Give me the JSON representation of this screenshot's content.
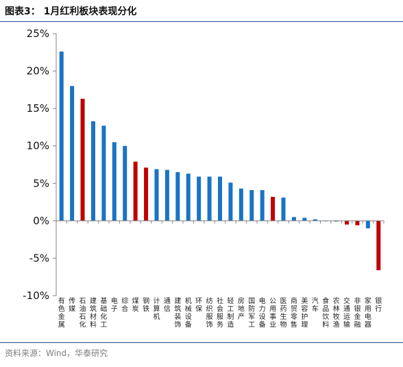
{
  "header": {
    "title": "图表3：  1月红利板块表现分化"
  },
  "footer": {
    "source": "资料来源：Wind，华泰研究"
  },
  "colors": {
    "default": "#1a73c4",
    "highlight": "#c00000",
    "axis": "#7f7f7f"
  },
  "chart_data": {
    "type": "bar",
    "title": "",
    "xlabel": "",
    "ylabel": "",
    "ylim": [
      -10,
      25
    ],
    "yticks": [
      25,
      20,
      15,
      10,
      5,
      0,
      -5,
      -10
    ],
    "ytick_labels": [
      "25%",
      "20%",
      "15%",
      "10%",
      "5%",
      "0%",
      "-5%",
      "-10%"
    ],
    "grid": false,
    "legend": "none",
    "categories": [
      "有色金属",
      "传媒",
      "石油石化",
      "建筑材料",
      "基础化工",
      "电子",
      "综合",
      "煤炭",
      "钢铁",
      "计算机",
      "通信",
      "建筑装饰",
      "机械设备",
      "环保",
      "纺织服饰",
      "社会服务",
      "轻工制造",
      "房地产",
      "国防军工",
      "电力设备",
      "公用事业",
      "医药生物",
      "商贸零售",
      "美容护理",
      "汽车",
      "食品饮料",
      "农林牧渔",
      "交通运输",
      "非银金融",
      "家用电器",
      "银行"
    ],
    "values": [
      22.6,
      18.0,
      16.3,
      13.3,
      12.7,
      10.5,
      10.0,
      7.9,
      7.1,
      6.9,
      6.8,
      6.5,
      6.3,
      5.9,
      5.9,
      5.9,
      5.1,
      4.3,
      4.1,
      4.1,
      3.2,
      3.1,
      0.5,
      0.4,
      0.2,
      0.0,
      -0.1,
      -0.5,
      -0.6,
      -1.0,
      -6.6
    ],
    "highlighted": [
      "石油石化",
      "煤炭",
      "钢铁",
      "公用事业",
      "交通运输",
      "非银金融",
      "银行"
    ]
  }
}
